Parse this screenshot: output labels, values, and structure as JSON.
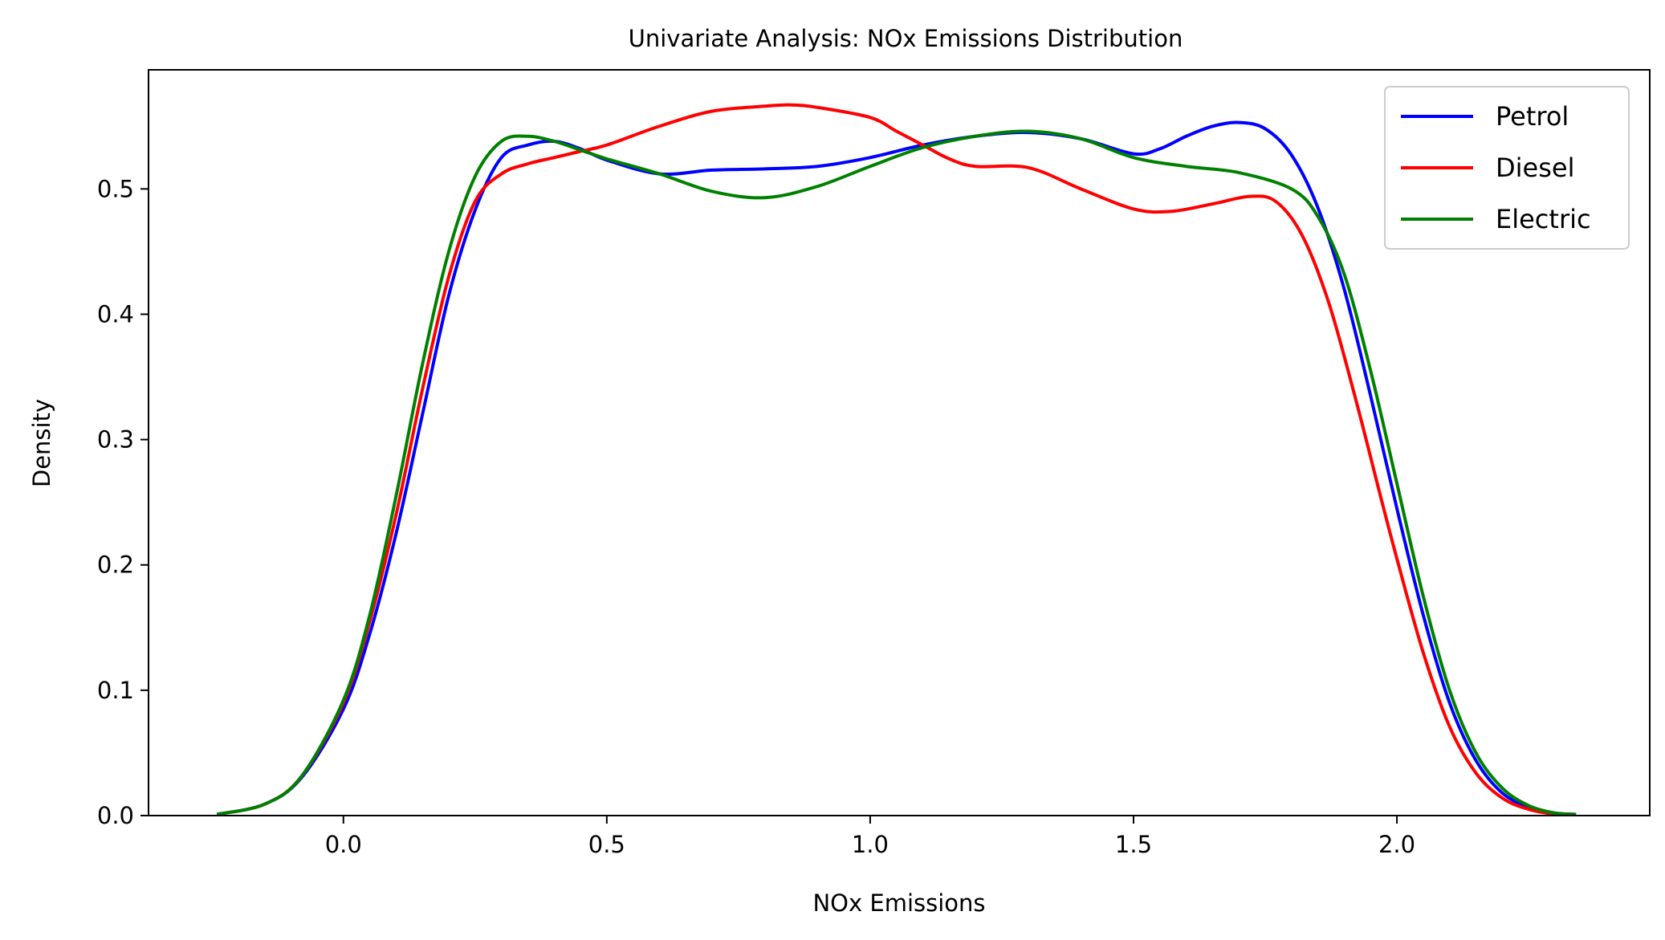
{
  "chart_data": {
    "type": "line",
    "title": "Univariate Analysis: NOx Emissions Distribution",
    "xlabel": "NOx Emissions",
    "ylabel": "Density",
    "xlim": [
      -0.37,
      2.48
    ],
    "ylim": [
      0.0,
      0.595
    ],
    "xticks": [
      0.0,
      0.5,
      1.0,
      1.5,
      2.0
    ],
    "xtick_labels": [
      "0.0",
      "0.5",
      "1.0",
      "1.5",
      "2.0"
    ],
    "yticks": [
      0.0,
      0.1,
      0.2,
      0.3,
      0.4,
      0.5
    ],
    "ytick_labels": [
      "0.0",
      "0.1",
      "0.2",
      "0.3",
      "0.4",
      "0.5"
    ],
    "grid": false,
    "legend_position": "top-right",
    "series": [
      {
        "name": "Petrol",
        "color": "#0000ff",
        "x": [
          -0.24,
          -0.15,
          -0.08,
          0.0,
          0.05,
          0.1,
          0.15,
          0.2,
          0.25,
          0.3,
          0.35,
          0.4,
          0.45,
          0.5,
          0.6,
          0.7,
          0.8,
          0.9,
          1.0,
          1.1,
          1.2,
          1.3,
          1.4,
          1.5,
          1.55,
          1.6,
          1.65,
          1.7,
          1.75,
          1.8,
          1.85,
          1.9,
          1.95,
          2.0,
          2.05,
          2.1,
          2.15,
          2.2,
          2.25,
          2.3,
          2.34
        ],
        "y": [
          0.001,
          0.009,
          0.03,
          0.085,
          0.145,
          0.225,
          0.32,
          0.415,
          0.483,
          0.525,
          0.535,
          0.538,
          0.532,
          0.523,
          0.512,
          0.515,
          0.516,
          0.518,
          0.525,
          0.535,
          0.542,
          0.545,
          0.54,
          0.528,
          0.532,
          0.542,
          0.55,
          0.553,
          0.548,
          0.527,
          0.485,
          0.42,
          0.335,
          0.245,
          0.16,
          0.09,
          0.044,
          0.018,
          0.007,
          0.002,
          0.001
        ]
      },
      {
        "name": "Diesel",
        "color": "#ff0000",
        "x": [
          -0.24,
          -0.15,
          -0.08,
          0.0,
          0.05,
          0.1,
          0.15,
          0.2,
          0.25,
          0.3,
          0.35,
          0.4,
          0.45,
          0.5,
          0.6,
          0.7,
          0.8,
          0.85,
          0.9,
          1.0,
          1.05,
          1.1,
          1.15,
          1.2,
          1.3,
          1.4,
          1.5,
          1.57,
          1.65,
          1.72,
          1.77,
          1.82,
          1.87,
          1.92,
          1.97,
          2.0,
          2.05,
          2.1,
          2.15,
          2.2,
          2.25,
          2.3,
          2.34
        ],
        "y": [
          0.001,
          0.009,
          0.031,
          0.09,
          0.155,
          0.24,
          0.34,
          0.43,
          0.49,
          0.512,
          0.52,
          0.525,
          0.53,
          0.535,
          0.55,
          0.562,
          0.566,
          0.567,
          0.565,
          0.557,
          0.546,
          0.535,
          0.524,
          0.518,
          0.517,
          0.5,
          0.484,
          0.482,
          0.488,
          0.494,
          0.49,
          0.463,
          0.41,
          0.335,
          0.253,
          0.205,
          0.13,
          0.071,
          0.034,
          0.014,
          0.005,
          0.001,
          0.0
        ]
      },
      {
        "name": "Electric",
        "color": "#008000",
        "x": [
          -0.24,
          -0.15,
          -0.08,
          0.0,
          0.05,
          0.1,
          0.15,
          0.2,
          0.25,
          0.3,
          0.35,
          0.4,
          0.45,
          0.5,
          0.6,
          0.7,
          0.8,
          0.9,
          1.0,
          1.1,
          1.2,
          1.3,
          1.4,
          1.5,
          1.6,
          1.7,
          1.8,
          1.85,
          1.9,
          1.95,
          2.0,
          2.05,
          2.1,
          2.15,
          2.2,
          2.25,
          2.3,
          2.34
        ],
        "y": [
          0.001,
          0.009,
          0.031,
          0.092,
          0.16,
          0.255,
          0.36,
          0.45,
          0.51,
          0.538,
          0.542,
          0.538,
          0.531,
          0.524,
          0.512,
          0.498,
          0.493,
          0.502,
          0.518,
          0.533,
          0.542,
          0.546,
          0.54,
          0.525,
          0.518,
          0.513,
          0.5,
          0.478,
          0.432,
          0.355,
          0.265,
          0.175,
          0.1,
          0.05,
          0.022,
          0.008,
          0.002,
          0.001
        ]
      }
    ]
  }
}
